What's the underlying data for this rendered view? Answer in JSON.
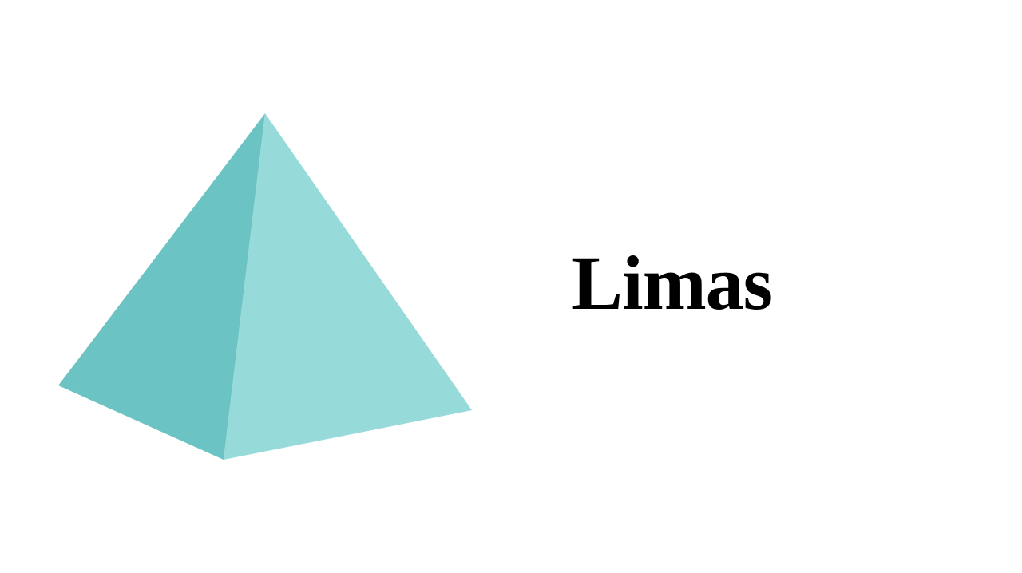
{
  "slide": {
    "title": "Limas"
  },
  "pyramid": {
    "icon": "pyramid-icon",
    "left_face_color": "#6BC4C3",
    "right_face_color": "#96DAD9"
  },
  "colors": {
    "background": "#FFFFFF",
    "title_text": "#000000"
  }
}
